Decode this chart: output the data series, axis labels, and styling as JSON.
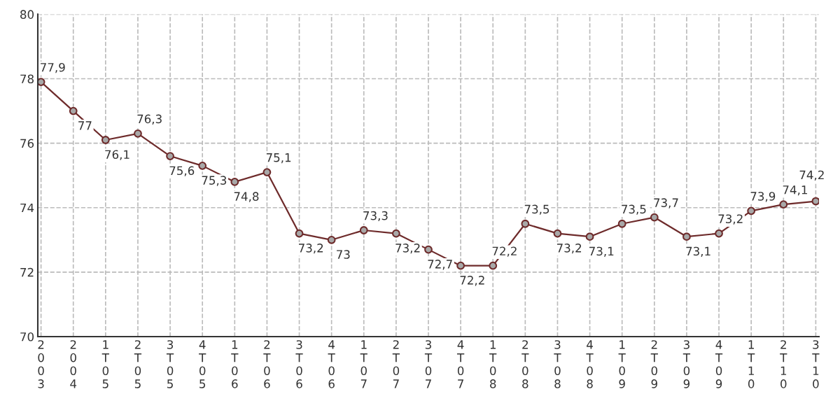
{
  "chart_data": {
    "type": "line",
    "categories": [
      "2003",
      "2004",
      "1T05",
      "2T05",
      "3T05",
      "4T05",
      "1T06",
      "2T06",
      "3T06",
      "4T06",
      "1T07",
      "2T07",
      "3T07",
      "4T07",
      "1T08",
      "2T08",
      "3T08",
      "4T08",
      "1T09",
      "2T09",
      "3T09",
      "4T09",
      "1T10",
      "2T10",
      "3T10"
    ],
    "series": [
      {
        "color": "#6e2b2b",
        "values": [
          77.9,
          77,
          76.1,
          76.3,
          75.6,
          75.3,
          74.8,
          75.1,
          73.2,
          73,
          73.3,
          73.2,
          72.7,
          72.2,
          72.2,
          73.5,
          73.2,
          73.1,
          73.5,
          73.7,
          73.1,
          73.2,
          73.9,
          74.1,
          74.2
        ],
        "value_labels": [
          "77,9",
          "77",
          "76,1",
          "76,3",
          "75,6",
          "75,3",
          "74,8",
          "75,1",
          "73,2",
          "73",
          "73,3",
          "73,2",
          "72,7",
          "72,2",
          "72,2",
          "73,5",
          "73,2",
          "73,1",
          "73,5",
          "73,7",
          "73,1",
          "73,2",
          "73,9",
          "74,1",
          "74,2"
        ]
      }
    ],
    "ylim": [
      70,
      80
    ],
    "yticks": [
      70,
      72,
      74,
      76,
      78,
      80
    ],
    "grid": true,
    "marker": "circle",
    "line_style": "solid"
  }
}
